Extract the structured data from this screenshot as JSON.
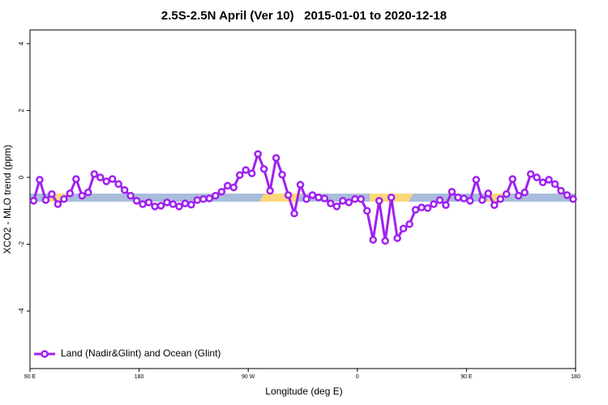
{
  "chart_data": {
    "type": "line",
    "title": "2.5S-2.5N April (Ver 10)   2015-01-01 to 2020-12-18",
    "x_label": "Longitude (deg E)",
    "y_label": "XCO2 - MLO trend (ppm)",
    "xlim": [
      90,
      540
    ],
    "xticks": [
      {
        "value": 90,
        "label": "90 E"
      },
      180,
      {
        "value": 270,
        "label": "90 W"
      },
      {
        "value": 360,
        "label": "0"
      },
      {
        "value": 450,
        "label": "90 E"
      },
      {
        "value": 540,
        "label": "180"
      }
    ],
    "ylim": [
      -5.72,
      4.41
    ],
    "yticks": [
      -4,
      -2,
      0,
      2,
      4
    ],
    "legend": "bottom-left",
    "x": [
      93,
      98,
      103,
      108,
      113,
      118,
      123,
      128,
      133,
      138,
      143,
      148,
      153,
      158,
      163,
      168,
      173,
      178,
      183,
      188,
      193,
      198,
      203,
      208,
      213,
      218,
      223,
      228,
      233,
      238,
      243,
      248,
      253,
      258,
      263,
      268,
      273,
      278,
      283,
      288,
      293,
      298,
      303,
      308,
      313,
      318,
      323,
      328,
      333,
      338,
      343,
      348,
      353,
      358,
      363,
      368,
      373,
      378,
      383,
      388,
      393,
      398,
      403,
      408,
      413,
      418,
      423,
      428,
      433,
      438,
      443,
      448,
      453,
      458,
      463,
      468,
      473,
      478,
      483,
      488,
      493,
      498,
      503,
      508,
      513,
      518,
      523,
      528,
      533,
      538
    ],
    "series": [
      {
        "name": "Land (Nadir&Glint) and Ocean (Glint)",
        "color": "#a020f0",
        "values": [
          -0.7,
          -0.07,
          -0.68,
          -0.5,
          -0.8,
          -0.65,
          -0.48,
          -0.05,
          -0.55,
          -0.45,
          0.1,
          0.0,
          -0.12,
          -0.05,
          -0.2,
          -0.38,
          -0.55,
          -0.7,
          -0.8,
          -0.75,
          -0.87,
          -0.85,
          -0.75,
          -0.8,
          -0.87,
          -0.78,
          -0.82,
          -0.68,
          -0.65,
          -0.63,
          -0.55,
          -0.43,
          -0.25,
          -0.3,
          0.07,
          0.22,
          0.12,
          0.7,
          0.25,
          -0.4,
          0.58,
          0.08,
          -0.53,
          -1.08,
          -0.22,
          -0.65,
          -0.53,
          -0.6,
          -0.63,
          -0.78,
          -0.87,
          -0.7,
          -0.75,
          -0.65,
          -0.65,
          -1.0,
          -1.87,
          -0.7,
          -1.9,
          -0.6,
          -1.82,
          -1.53,
          -1.4,
          -0.97,
          -0.9,
          -0.92,
          -0.8,
          -0.68,
          -0.83,
          -0.43,
          -0.6,
          -0.63,
          -0.7,
          -0.07,
          -0.68,
          -0.48,
          -0.83,
          -0.65,
          -0.5,
          -0.05,
          -0.55,
          -0.45,
          0.1,
          0.0,
          -0.15,
          -0.07,
          -0.2,
          -0.4,
          -0.53,
          -0.65
        ]
      }
    ]
  }
}
